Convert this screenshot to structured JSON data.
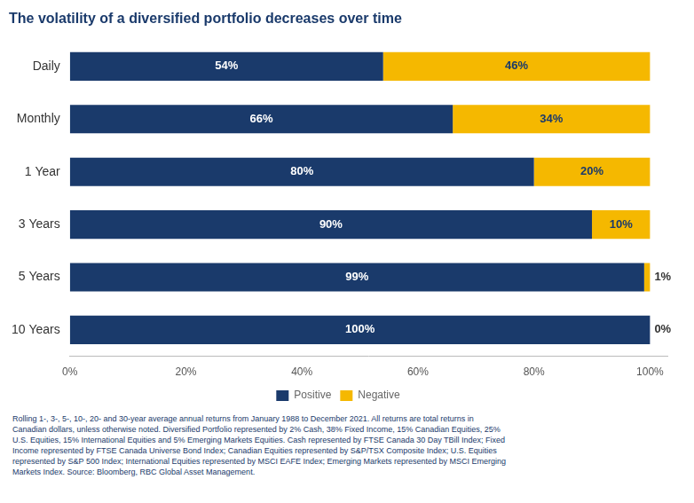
{
  "chart_data": {
    "type": "bar",
    "orientation": "horizontal",
    "stacked": true,
    "title": "The volatility of a diversified portfolio decreases over time",
    "categories": [
      "Daily",
      "Monthly",
      "1 Year",
      "3 Years",
      "5 Years",
      "10 Years"
    ],
    "series": [
      {
        "name": "Positive",
        "color": "#1a3a6b",
        "values": [
          54,
          66,
          80,
          90,
          99,
          100
        ],
        "value_labels": [
          "54%",
          "66%",
          "80%",
          "90%",
          "99%",
          "100%"
        ]
      },
      {
        "name": "Negative",
        "color": "#f5b800",
        "values": [
          46,
          34,
          20,
          10,
          1,
          0
        ],
        "value_labels": [
          "46%",
          "34%",
          "20%",
          "10%",
          "1%",
          "0%"
        ]
      }
    ],
    "xlim": [
      0,
      103
    ],
    "xticks": [
      {
        "value": 0,
        "label": "0%"
      },
      {
        "value": 20,
        "label": "20%"
      },
      {
        "value": 40,
        "label": "40%"
      },
      {
        "value": 60,
        "label": "60%"
      },
      {
        "value": 80,
        "label": "80%"
      },
      {
        "value": 100,
        "label": "100%"
      }
    ],
    "grid": false,
    "legend": "bottom",
    "data_labels": true,
    "annotations": [
      "Rolling 1-, 3-, 5-, 10-, 20- and 30-year average annual returns from January 1988 to December 2021. All returns are total returns in",
      "Canadian dollars, unless otherwise noted. Diversified Portfolio represented by 2% Cash, 38% Fixed Income, 15% Canadian Equities, 25%",
      "U.S. Equities, 15% International Equities and 5% Emerging Markets Equities. Cash represented by FTSE Canada 30 Day TBill Index; Fixed",
      "Income represented by FTSE Canada Universe Bond Index; Canadian Equities represented by S&P/TSX Composite Index; U.S. Equities",
      "represented by S&P 500 Index; International Equities represented by MSCI EAFE Index; Emerging Markets represented by MSCI Emerging",
      "Markets Index. Source: Bloomberg, RBC Global Asset Management."
    ]
  }
}
